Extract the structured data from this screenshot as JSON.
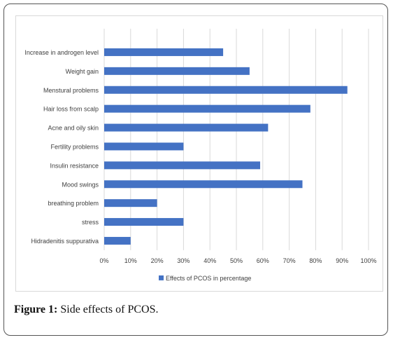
{
  "caption": {
    "label": "Figure 1:",
    "text": " Side effects of PCOS."
  },
  "chart_data": {
    "type": "bar",
    "orientation": "horizontal",
    "categories": [
      "Increase in androgen level",
      "Weight gain",
      "Menstural problems",
      "Hair loss from scalp",
      "Acne and oily skin",
      "Fertility problems",
      "Insulin resistance",
      "Mood swings",
      "breathing problem",
      "stress",
      "Hidradenitis suppurativa"
    ],
    "series": [
      {
        "name": "Effects of PCOS in percentage",
        "values": [
          45,
          55,
          92,
          78,
          62,
          30,
          59,
          75,
          20,
          30,
          10
        ],
        "color": "#4472c4"
      }
    ],
    "xlim": [
      0,
      100
    ],
    "xticks": [
      "0%",
      "10%",
      "20%",
      "30%",
      "40%",
      "50%",
      "60%",
      "70%",
      "80%",
      "90%",
      "100%"
    ],
    "grid": true,
    "legend": "bottom",
    "title": "",
    "xlabel": "",
    "ylabel": ""
  }
}
